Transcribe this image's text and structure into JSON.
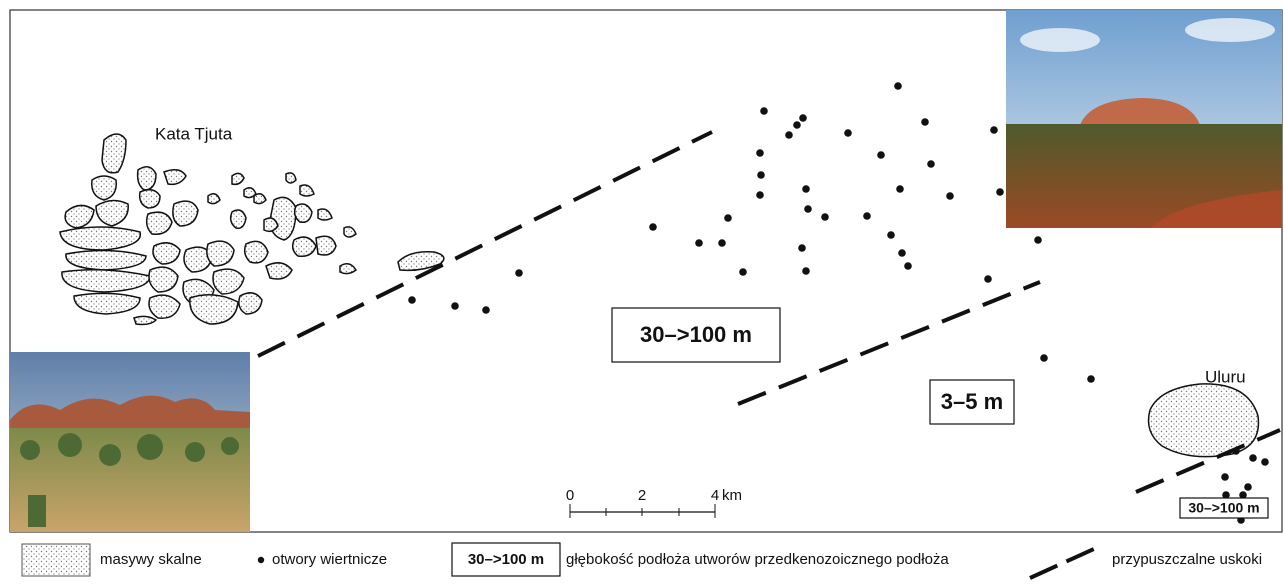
{
  "labels": {
    "kata_tjuta": "Kata Tjuta",
    "uluru": "Uluru"
  },
  "depth_boxes": [
    "30–>100 m",
    "3–5 m",
    "30–>100 m"
  ],
  "scale_bar": {
    "ticks": [
      "0",
      "2",
      "4"
    ],
    "unit": "km"
  },
  "legend": [
    {
      "label": "masywy skalne"
    },
    {
      "label": "otwory wiertnicze"
    },
    {
      "symbol": "30–>100 m",
      "label": "głębokość podłoża utworów przedkenozoicznego podłoża"
    },
    {
      "label": "przypuszczalne uskoki"
    }
  ]
}
